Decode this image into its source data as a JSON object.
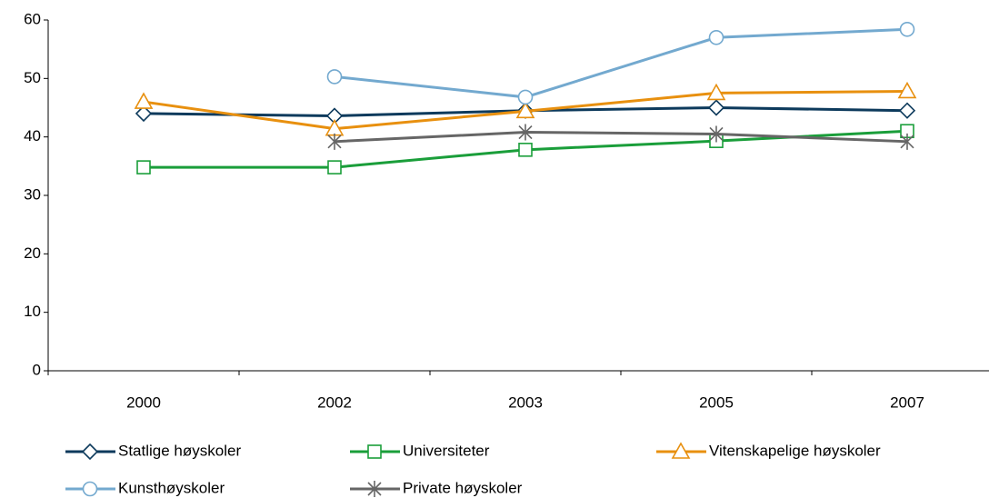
{
  "chart_data": {
    "type": "line",
    "categories": [
      "2000",
      "2002",
      "2003",
      "2005",
      "2007"
    ],
    "ylim": [
      0,
      60
    ],
    "yticks": [
      0,
      10,
      20,
      30,
      40,
      50,
      60
    ],
    "series": [
      {
        "name": "Statlige høyskoler",
        "color": "#0d3a5c",
        "marker": "diamond",
        "values": [
          44,
          43.6,
          44.5,
          45,
          44.5
        ]
      },
      {
        "name": "Universiteter",
        "color": "#1a9e3a",
        "marker": "square",
        "values": [
          34.8,
          34.8,
          37.8,
          39.3,
          41
        ]
      },
      {
        "name": "Vitenskapelige høyskoler",
        "color": "#e8900f",
        "marker": "triangle",
        "values": [
          46,
          41.4,
          44.4,
          47.5,
          47.8
        ]
      },
      {
        "name": "Kunsthøyskoler",
        "color": "#73a9cf",
        "marker": "circle",
        "values": [
          null,
          50.3,
          46.8,
          57,
          58.4
        ]
      },
      {
        "name": "Private høyskoler",
        "color": "#666666",
        "marker": "asterisk",
        "values": [
          null,
          39.2,
          40.8,
          40.5,
          39.2
        ]
      }
    ]
  }
}
